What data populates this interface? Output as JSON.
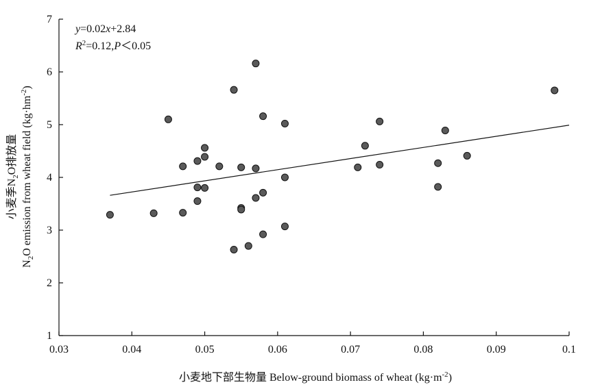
{
  "chart_data": {
    "type": "scatter",
    "xlabel": {
      "cn": "小麦地下部生物量",
      "en_prefix": "Below-ground biomass of wheat (kg·m",
      "sup": "-2",
      "suffix": ")"
    },
    "ylabel": {
      "cn": "小麦季N",
      "sub": "2",
      "cn_suffix": "O排放量",
      "en_prefix": "N",
      "en_sub": "2",
      "en_mid": "O emission from wheat field (kg·hm",
      "en_sup": "-2",
      "en_suffix": ")"
    },
    "xlim": [
      0.03,
      0.1
    ],
    "ylim": [
      1,
      7
    ],
    "xticks": [
      0.03,
      0.04,
      0.05,
      0.06,
      0.07,
      0.08,
      0.09,
      0.1
    ],
    "xtick_labels": [
      "0.03",
      "0.04",
      "0.05",
      "0.06",
      "0.07",
      "0.08",
      "0.09",
      "0.1"
    ],
    "yticks": [
      1,
      2,
      3,
      4,
      5,
      6,
      7
    ],
    "ytick_labels": [
      "1",
      "2",
      "3",
      "4",
      "5",
      "6",
      "7"
    ],
    "points": [
      {
        "x": 0.037,
        "y": 3.29
      },
      {
        "x": 0.043,
        "y": 3.32
      },
      {
        "x": 0.045,
        "y": 5.1
      },
      {
        "x": 0.047,
        "y": 4.21
      },
      {
        "x": 0.047,
        "y": 3.33
      },
      {
        "x": 0.049,
        "y": 4.31
      },
      {
        "x": 0.049,
        "y": 3.81
      },
      {
        "x": 0.049,
        "y": 3.55
      },
      {
        "x": 0.05,
        "y": 4.56
      },
      {
        "x": 0.05,
        "y": 4.39
      },
      {
        "x": 0.05,
        "y": 3.8
      },
      {
        "x": 0.052,
        "y": 4.21
      },
      {
        "x": 0.054,
        "y": 5.66
      },
      {
        "x": 0.054,
        "y": 2.63
      },
      {
        "x": 0.055,
        "y": 4.19
      },
      {
        "x": 0.055,
        "y": 3.42
      },
      {
        "x": 0.055,
        "y": 3.39
      },
      {
        "x": 0.056,
        "y": 2.7
      },
      {
        "x": 0.057,
        "y": 6.16
      },
      {
        "x": 0.057,
        "y": 4.17
      },
      {
        "x": 0.057,
        "y": 3.61
      },
      {
        "x": 0.058,
        "y": 5.16
      },
      {
        "x": 0.058,
        "y": 3.71
      },
      {
        "x": 0.058,
        "y": 2.92
      },
      {
        "x": 0.061,
        "y": 5.02
      },
      {
        "x": 0.061,
        "y": 4.0
      },
      {
        "x": 0.061,
        "y": 3.07
      },
      {
        "x": 0.071,
        "y": 4.19
      },
      {
        "x": 0.072,
        "y": 4.6
      },
      {
        "x": 0.074,
        "y": 5.06
      },
      {
        "x": 0.074,
        "y": 4.24
      },
      {
        "x": 0.082,
        "y": 4.27
      },
      {
        "x": 0.082,
        "y": 3.82
      },
      {
        "x": 0.083,
        "y": 4.89
      },
      {
        "x": 0.086,
        "y": 4.41
      },
      {
        "x": 0.098,
        "y": 5.65
      }
    ],
    "trendline": {
      "x": [
        0.037,
        0.1
      ],
      "y": [
        3.66,
        4.99
      ]
    },
    "annotation": {
      "eq_y": "y",
      "eq_rest": "=0.02",
      "eq_x": "x",
      "eq_tail": "+2.84",
      "r_R": "R",
      "r_sup": "2",
      "r_mid": "=0.12,",
      "r_P": "P",
      "r_tail": "＜0.05"
    },
    "colors": {
      "point_fill": "#5a5a5a",
      "point_stroke": "#111111",
      "line": "#111111",
      "axis": "#111111"
    }
  }
}
